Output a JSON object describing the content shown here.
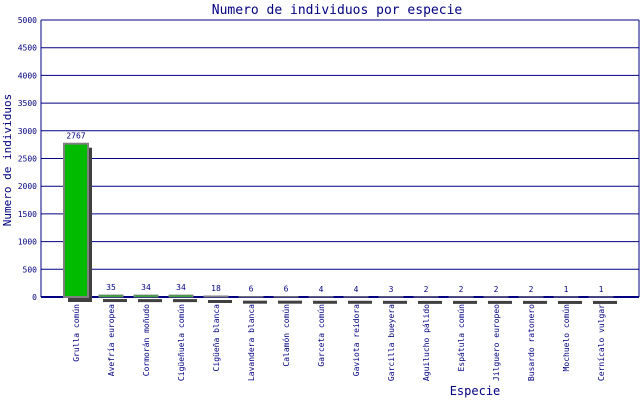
{
  "chart_data": {
    "type": "bar",
    "title": "Numero de individuos por especie",
    "xlabel": "Especie",
    "ylabel": "Numero de individuos",
    "ylim": [
      0,
      5000
    ],
    "yticks": [
      0,
      500,
      1000,
      1500,
      2000,
      2500,
      3000,
      3500,
      4000,
      4500,
      5000
    ],
    "grid": true,
    "categories": [
      "Grulla común",
      "Avefría europea",
      "Cormorán moñudo",
      "Cigüeñuela común",
      "Cigüeña blanca",
      "Lavandera blanca",
      "Calamón común",
      "Garceta común",
      "Gaviota reidora",
      "Garcilla bueyera",
      "Aguilucho pálido",
      "Espátula común",
      "Jilguero europeo",
      "Busardo ratonero",
      "Mochuelo común",
      "Cernícalo vulgar"
    ],
    "values": [
      2767,
      35,
      34,
      34,
      18,
      6,
      6,
      4,
      4,
      3,
      2,
      2,
      2,
      2,
      1,
      1
    ],
    "colors": {
      "bar": "#00bb00",
      "bar_border": "#808080",
      "shadow": "#404040",
      "axis": "#000080"
    }
  }
}
